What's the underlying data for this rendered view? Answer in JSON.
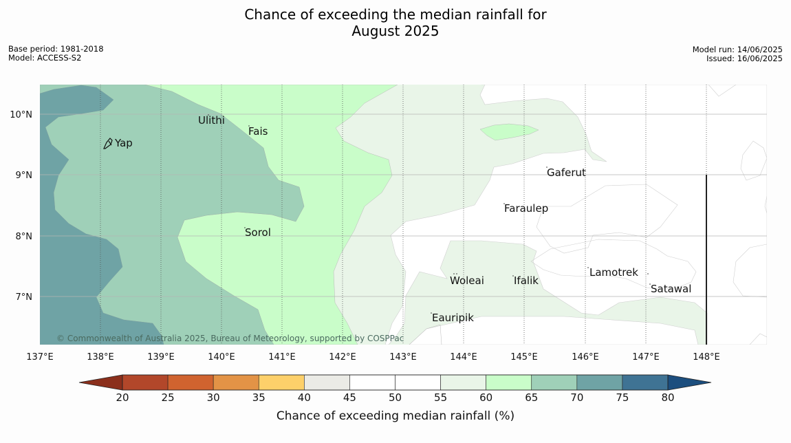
{
  "title_line1": "Chance of exceeding the median rainfall for",
  "title_line2": "August 2025",
  "base_period": "Base period: 1981-2018",
  "model": "Model: ACCESS-S2",
  "model_run": "Model run: 14/06/2025",
  "issued": "Issued: 16/06/2025",
  "copyright": "© Commonwealth of Australia 2025, Bureau of Meteorology, supported by COSPPac",
  "lon_ticks": [
    "137°E",
    "138°E",
    "139°E",
    "140°E",
    "141°E",
    "142°E",
    "143°E",
    "144°E",
    "145°E",
    "146°E",
    "147°E",
    "148°E"
  ],
  "lat_ticks": [
    "10°N",
    "9°N",
    "8°N",
    "7°N"
  ],
  "places": [
    {
      "name": "Ulithi"
    },
    {
      "name": "Fais"
    },
    {
      "name": "Yap"
    },
    {
      "name": "Gaferut"
    },
    {
      "name": "Faraulep"
    },
    {
      "name": "Sorol"
    },
    {
      "name": "Lamotrek"
    },
    {
      "name": "Woleai"
    },
    {
      "name": "Ifalik"
    },
    {
      "name": "Satawal"
    },
    {
      "name": "Eauripik"
    }
  ],
  "legend": {
    "title": "Chance of exceeding median rainfall (%)",
    "ticks": [
      "20",
      "25",
      "30",
      "35",
      "40",
      "45",
      "50",
      "55",
      "60",
      "65",
      "70",
      "75",
      "80"
    ],
    "colors": {
      "below20": "#8b2f1c",
      "20-25": "#b2472a",
      "25-30": "#d0632f",
      "30-35": "#e39346",
      "35-40": "#fdd06a",
      "40-45": "#ebebe6",
      "45-50": "#ffffff",
      "50-55": "#ffffff",
      "55-60": "#e9f5e8",
      "60-65": "#c9fdc9",
      "65-70": "#9fd0b8",
      "70-75": "#6fa3a5",
      "75-80": "#3f7394",
      "above80": "#1c4e7e"
    }
  }
}
